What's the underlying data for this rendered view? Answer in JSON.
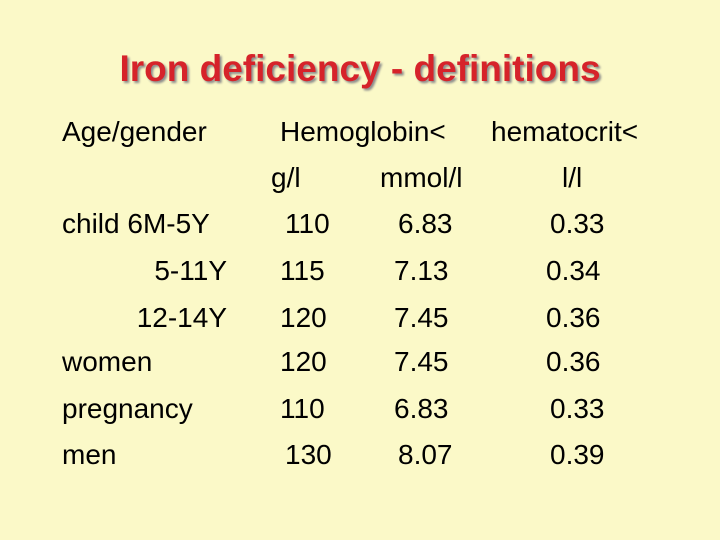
{
  "title": "Iron deficiency - definitions",
  "headers": {
    "age_gender": "Age/gender",
    "hemoglobin": "Hemoglobin<",
    "hematocrit": "hematocrit<",
    "unit_gl": "g/l",
    "unit_mmoll": "mmol/l",
    "unit_ll": "l/l"
  },
  "rows": [
    {
      "label": "child 6M-5Y",
      "hb_gl": "110",
      "hb_mmol": "6.83",
      "hct": "0.33"
    },
    {
      "label": "5-11Y",
      "hb_gl": "115",
      "hb_mmol": "7.13",
      "hct": "0.34"
    },
    {
      "label": "12-14Y",
      "hb_gl": "120",
      "hb_mmol": "7.45",
      "hct": "0.36"
    },
    {
      "label": "women",
      "hb_gl": "120",
      "hb_mmol": "7.45",
      "hct": "0.36"
    },
    {
      "label": "pregnancy",
      "hb_gl": "110",
      "hb_mmol": "6.83",
      "hct": "0.33"
    },
    {
      "label": "men",
      "hb_gl": "130",
      "hb_mmol": "8.07",
      "hct": "0.39"
    }
  ],
  "colors": {
    "background": "#fbf9c8",
    "title": "#d6232a",
    "text": "#000000"
  }
}
